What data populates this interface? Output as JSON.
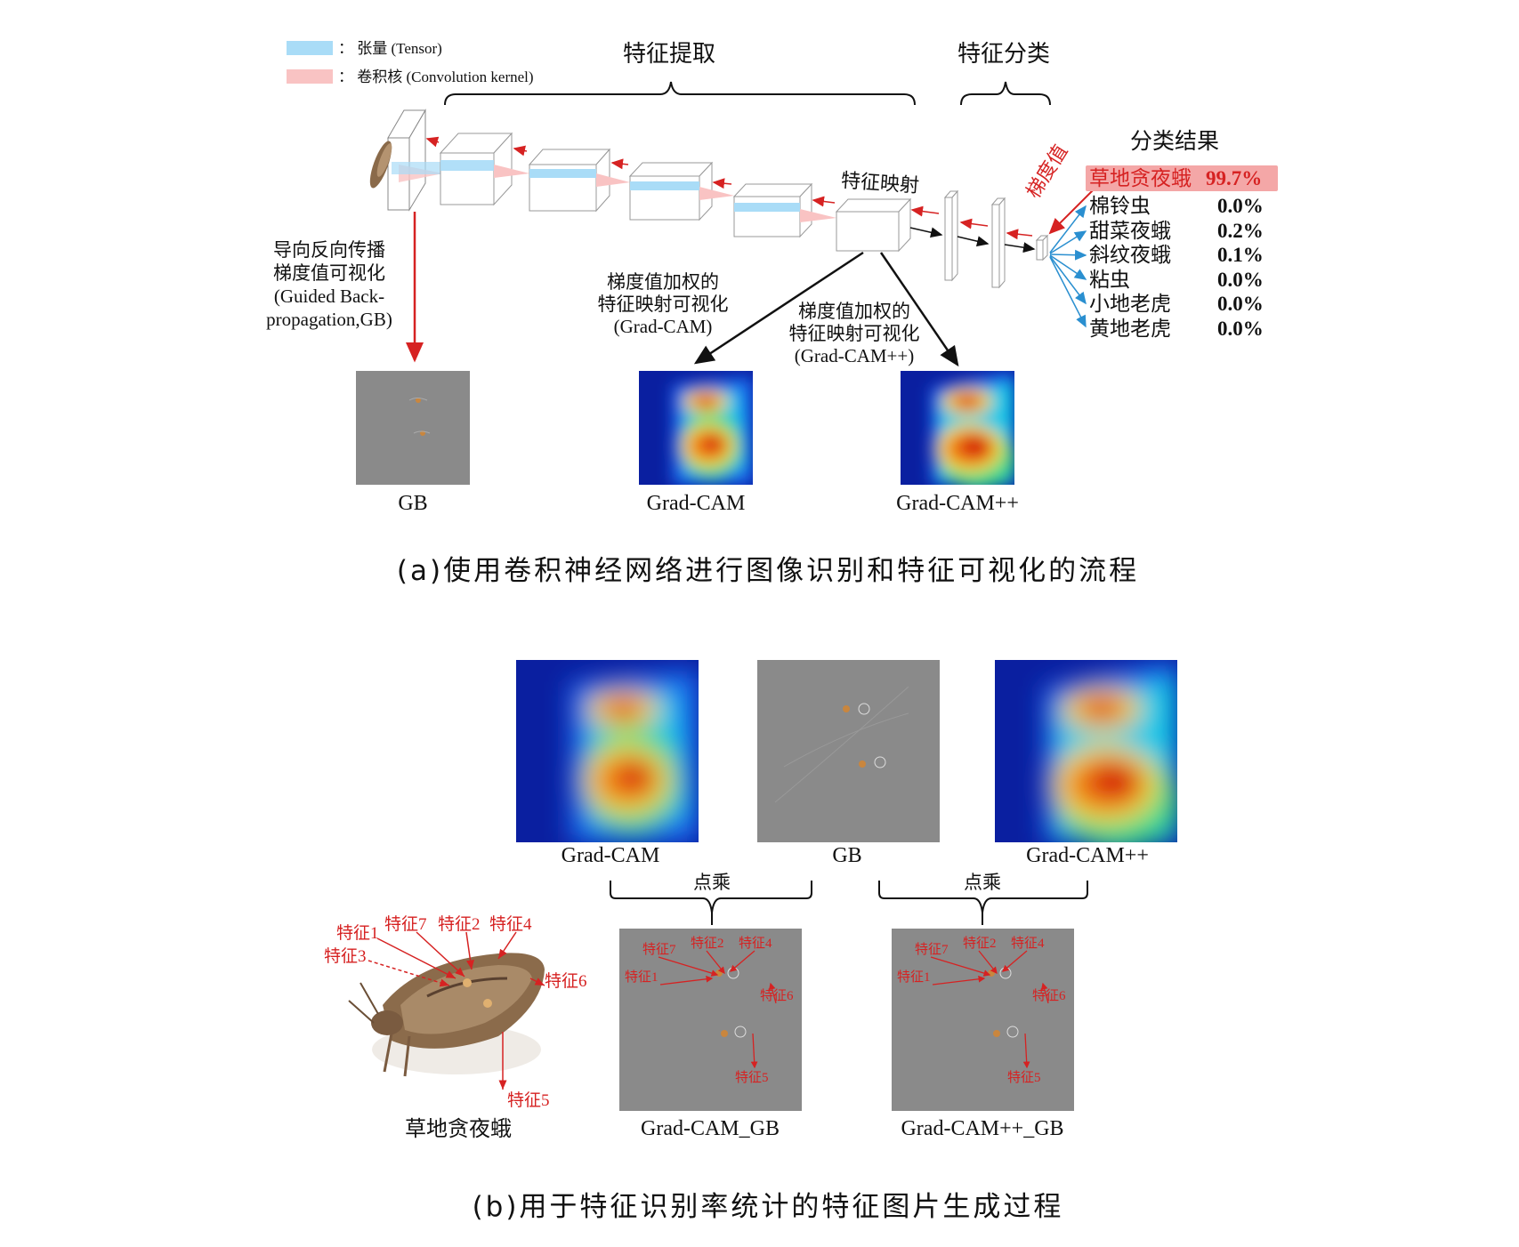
{
  "colors": {
    "tensor": "#a9dcf7",
    "kernel": "#f9c3c3",
    "red_arrow": "#d62222",
    "blue_arrow": "#2a8fd0",
    "highlight": "#f4a7a7",
    "gb_gray": "#8a8a8a"
  },
  "part_a": {
    "legend": [
      {
        "label": "：  张量 (Tensor)"
      },
      {
        "label": "：  卷积核 (Convolution kernel)"
      }
    ],
    "bracket_extract": "特征提取",
    "bracket_classify": "特征分类",
    "feature_map_label": "特征映射",
    "gradient_label": "梯度值",
    "results_title": "分类结果",
    "results": [
      {
        "name": "草地贪夜蛾",
        "value": "99.7%"
      },
      {
        "name": "棉铃虫",
        "value": "0.0%"
      },
      {
        "name": "甜菜夜蛾",
        "value": "0.2%"
      },
      {
        "name": "斜纹夜蛾",
        "value": "0.1%"
      },
      {
        "name": "粘虫",
        "value": "0.0%"
      },
      {
        "name": "小地老虎",
        "value": "0.0%"
      },
      {
        "name": "黄地老虎",
        "value": "0.0%"
      }
    ],
    "gb_annot": [
      "导向反向传播",
      "梯度值可视化",
      "(Guided Back-",
      "propagation,GB)"
    ],
    "gradcam_annot": [
      "梯度值加权的",
      "特征映射可视化",
      "(Grad-CAM)"
    ],
    "gradcampp_annot": [
      "梯度值加权的",
      "特征映射可视化",
      "(Grad-CAM++)"
    ],
    "img_labels": [
      "GB",
      "Grad-CAM",
      "Grad-CAM++"
    ],
    "caption": "(a)使用卷积神经网络进行图像识别和特征可视化的流程"
  },
  "part_b": {
    "img_labels": [
      "Grad-CAM",
      "GB",
      "Grad-CAM++"
    ],
    "multiply": "点乘",
    "moth_label": "草地贪夜蛾",
    "moth_features": [
      "特征1",
      "特征7",
      "特征2",
      "特征4",
      "特征3",
      "特征6",
      "特征5"
    ],
    "out_features": [
      "特征7",
      "特征2",
      "特征4",
      "特征1",
      "特征6",
      "特征5"
    ],
    "out_labels": [
      "Grad-CAM_GB",
      "Grad-CAM++_GB"
    ],
    "caption": "(b)用于特征识别率统计的特征图片生成过程"
  }
}
